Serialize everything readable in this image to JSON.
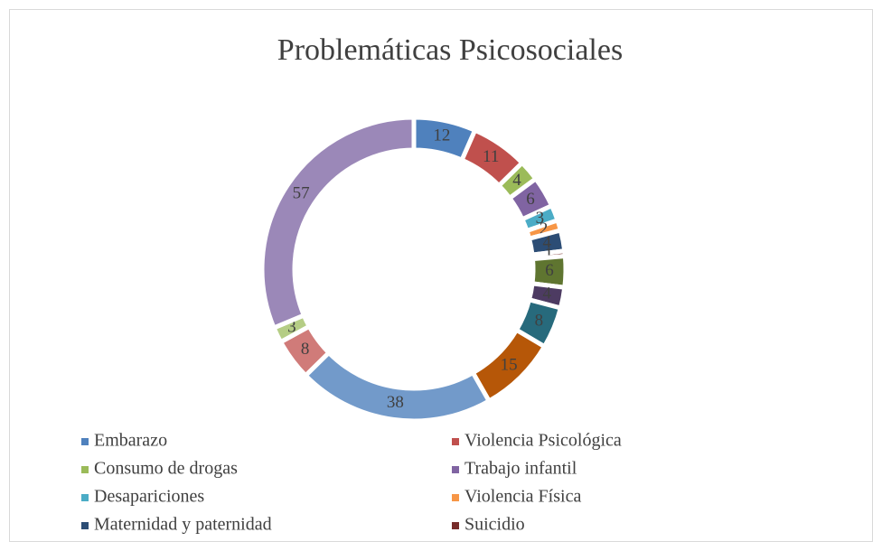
{
  "chart_data": {
    "type": "doughnut",
    "title": "Problemáticas Psicosociales",
    "categories": [
      "Embarazo",
      "Violencia Psicológica",
      "Consumo de drogas",
      "Trabajo infantil",
      "Desapariciones",
      "Violencia Física",
      "Maternidad y paternidad",
      "Suicidio",
      null,
      null,
      null,
      null,
      null,
      null,
      null,
      null
    ],
    "values": [
      12,
      11,
      4,
      6,
      3,
      2,
      4,
      1,
      6,
      4,
      8,
      15,
      38,
      8,
      3,
      57
    ],
    "colors": [
      "#4f81bd",
      "#c0504d",
      "#9bbb59",
      "#8064a2",
      "#4bacc6",
      "#f79646",
      "#2c4d75",
      "#772c2a",
      "#5f7530",
      "#4d3b62",
      "#276a7c",
      "#b65708",
      "#729aca",
      "#d07b79",
      "#b5cd85",
      "#9b88b8"
    ]
  }
}
